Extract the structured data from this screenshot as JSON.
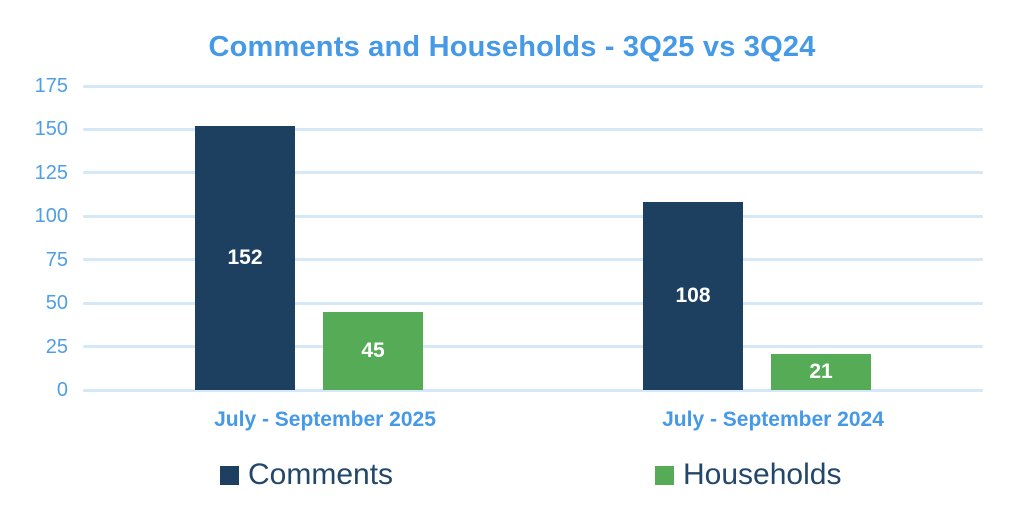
{
  "chart_data": {
    "type": "bar",
    "title": "Comments and Households - 3Q25 vs 3Q24",
    "categories": [
      "July - September 2025",
      "July - September 2024"
    ],
    "series": [
      {
        "name": "Comments",
        "values": [
          152,
          108
        ],
        "color": "#1d4060"
      },
      {
        "name": "Households",
        "values": [
          45,
          21
        ],
        "color": "#55ab56"
      }
    ],
    "y_ticks": [
      0,
      25,
      50,
      75,
      100,
      125,
      150,
      175
    ],
    "ylim": [
      0,
      175
    ],
    "grid": true,
    "legend_position": "bottom",
    "value_labels": "inside-center",
    "value_label_color": "#ffffff"
  },
  "colors": {
    "accent_blue": "#4599e6",
    "gridline": "#d4e8f7",
    "comments_navy": "#1d4060",
    "households_green": "#55ab56",
    "legend_text": "#23476b",
    "background": "#ffffff"
  }
}
